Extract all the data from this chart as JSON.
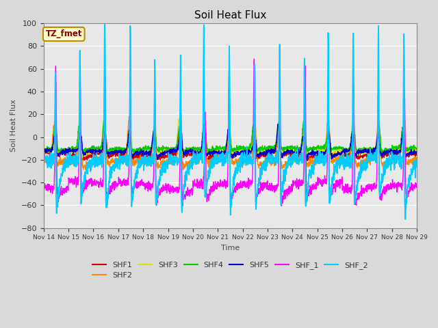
{
  "title": "Soil Heat Flux",
  "xlabel": "Time",
  "ylabel": "Soil Heat Flux",
  "ylim": [
    -80,
    100
  ],
  "xlim": [
    0,
    15
  ],
  "fig_bg": "#d9d9d9",
  "ax_bg": "#e8e8e8",
  "annotation_text": "TZ_fmet",
  "annotation_bg": "#ffffcc",
  "annotation_border": "#bb8800",
  "annotation_text_color": "#880000",
  "x_tick_labels": [
    "Nov 14",
    "Nov 15",
    "Nov 16",
    "Nov 17",
    "Nov 18",
    "Nov 19",
    "Nov 20",
    "Nov 21",
    "Nov 22",
    "Nov 23",
    "Nov 24",
    "Nov 25",
    "Nov 26",
    "Nov 27",
    "Nov 28",
    "Nov 29"
  ],
  "series_order": [
    "SHF1",
    "SHF2",
    "SHF3",
    "SHF4",
    "SHF5",
    "SHF_1",
    "SHF_2"
  ],
  "series": {
    "SHF1": {
      "color": "#cc0000",
      "lw": 1.0
    },
    "SHF2": {
      "color": "#ff8800",
      "lw": 1.0
    },
    "SHF3": {
      "color": "#dddd00",
      "lw": 1.0
    },
    "SHF4": {
      "color": "#00cc00",
      "lw": 1.0
    },
    "SHF5": {
      "color": "#0000cc",
      "lw": 1.0
    },
    "SHF_1": {
      "color": "#ff00ff",
      "lw": 1.0
    },
    "SHF_2": {
      "color": "#00ccff",
      "lw": 1.3
    }
  },
  "legend_order": [
    "SHF1",
    "SHF2",
    "SHF3",
    "SHF4",
    "SHF5",
    "SHF_1",
    "SHF_2"
  ]
}
